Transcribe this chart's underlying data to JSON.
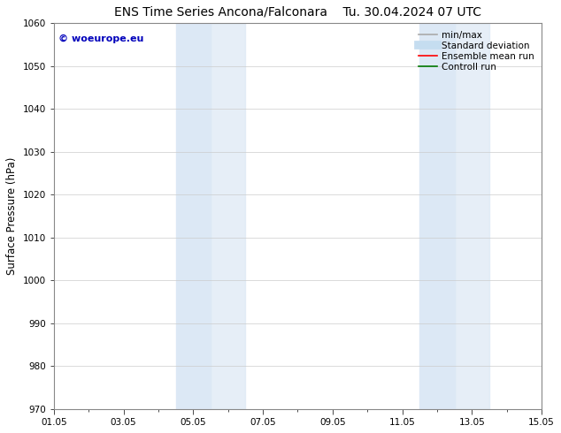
{
  "title_left": "ENS Time Series Ancona/Falconara",
  "title_right": "Tu. 30.04.2024 07 UTC",
  "ylabel": "Surface Pressure (hPa)",
  "ylim": [
    970,
    1060
  ],
  "yticks": [
    970,
    980,
    990,
    1000,
    1010,
    1020,
    1030,
    1040,
    1050,
    1060
  ],
  "xlim": [
    0,
    14
  ],
  "xtick_labels": [
    "01.05",
    "03.05",
    "05.05",
    "07.05",
    "09.05",
    "11.05",
    "13.05",
    "15.05"
  ],
  "xtick_positions": [
    0,
    2,
    4,
    6,
    8,
    10,
    12,
    14
  ],
  "shaded_bands": [
    {
      "x_start": 3.5,
      "x_end": 4.5,
      "color": "#ddeeff",
      "alpha": 0.8
    },
    {
      "x_start": 4.5,
      "x_end": 5.5,
      "color": "#ddeeff",
      "alpha": 0.6
    },
    {
      "x_start": 10.5,
      "x_end": 11.5,
      "color": "#ddeeff",
      "alpha": 0.8
    },
    {
      "x_start": 11.5,
      "x_end": 12.5,
      "color": "#ddeeff",
      "alpha": 0.6
    }
  ],
  "watermark_text": "© woeurope.eu",
  "watermark_color": "#0000bb",
  "legend_entries": [
    {
      "label": "min/max",
      "color": "#aaaaaa",
      "lw": 1.2,
      "style": "solid"
    },
    {
      "label": "Standard deviation",
      "color": "#c5ddf0",
      "lw": 7,
      "style": "solid"
    },
    {
      "label": "Ensemble mean run",
      "color": "#ff0000",
      "lw": 1.2,
      "style": "solid"
    },
    {
      "label": "Controll run",
      "color": "#007700",
      "lw": 1.2,
      "style": "solid"
    }
  ],
  "background_color": "#ffffff",
  "grid_color": "#cccccc",
  "title_fontsize": 10,
  "tick_fontsize": 7.5,
  "ylabel_fontsize": 8.5,
  "legend_fontsize": 7.5,
  "watermark_fontsize": 8
}
